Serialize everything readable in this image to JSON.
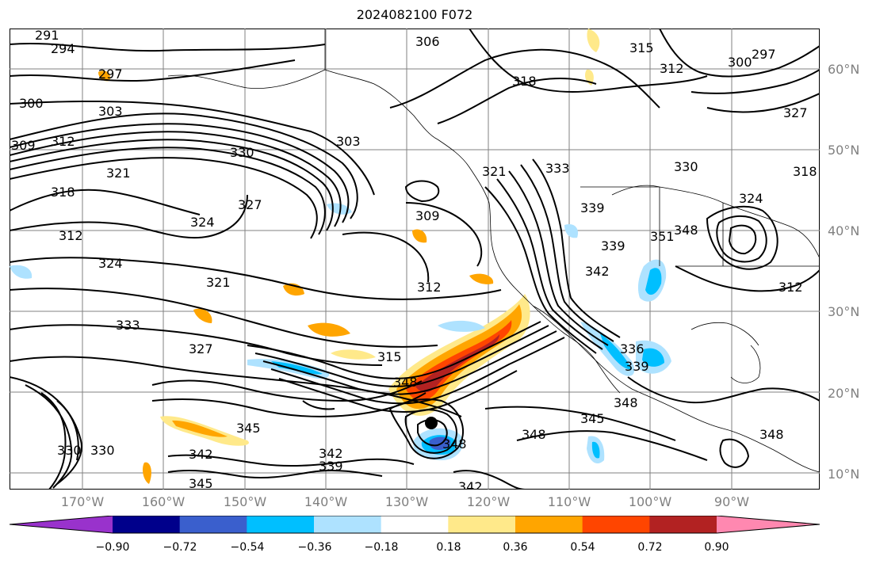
{
  "title": "2024082100 F072",
  "latitude_labels": [
    "60°N",
    "50°N",
    "40°N",
    "30°N",
    "20°N",
    "10°N"
  ],
  "longitude_labels": [
    "170°W",
    "160°W",
    "150°W",
    "140°W",
    "130°W",
    "120°W",
    "110°W",
    "100°W",
    "90°W"
  ],
  "colorbar": {
    "tick_labels": [
      "−0.90",
      "−0.72",
      "−0.54",
      "−0.36",
      "−0.18",
      "0.18",
      "0.36",
      "0.54",
      "0.72",
      "0.90"
    ],
    "colors": [
      "#9932cc",
      "#00008b",
      "#3a5fcd",
      "#00bfff",
      "#aee2ff",
      "#ffffff",
      "#ffe98a",
      "#ffa500",
      "#ff4500",
      "#b22222",
      "#ff88b0"
    ]
  },
  "contour_labels": [
    {
      "text": "291"
    },
    {
      "text": "294"
    },
    {
      "text": "297"
    },
    {
      "text": "300"
    },
    {
      "text": "303"
    },
    {
      "text": "309"
    },
    {
      "text": "312"
    },
    {
      "text": "330"
    },
    {
      "text": "321"
    },
    {
      "text": "318"
    },
    {
      "text": "312"
    },
    {
      "text": "324"
    },
    {
      "text": "327"
    },
    {
      "text": "324"
    },
    {
      "text": "321"
    },
    {
      "text": "333"
    },
    {
      "text": "327"
    },
    {
      "text": "303"
    },
    {
      "text": "306"
    },
    {
      "text": "318"
    },
    {
      "text": "315"
    },
    {
      "text": "312"
    },
    {
      "text": "309"
    },
    {
      "text": "312"
    },
    {
      "text": "315"
    },
    {
      "text": "330"
    },
    {
      "text": "345"
    },
    {
      "text": "342"
    },
    {
      "text": "345"
    },
    {
      "text": "342"
    },
    {
      "text": "339"
    },
    {
      "text": "348"
    },
    {
      "text": "348"
    },
    {
      "text": "345"
    },
    {
      "text": "342"
    },
    {
      "text": "321"
    },
    {
      "text": "333"
    },
    {
      "text": "339"
    },
    {
      "text": "330"
    },
    {
      "text": "351"
    },
    {
      "text": "348"
    },
    {
      "text": "342"
    },
    {
      "text": "339"
    },
    {
      "text": "336"
    },
    {
      "text": "339"
    },
    {
      "text": "348"
    },
    {
      "text": "327"
    },
    {
      "text": "318"
    },
    {
      "text": "324"
    },
    {
      "text": "312"
    },
    {
      "text": "300"
    },
    {
      "text": "297"
    },
    {
      "text": "348"
    },
    {
      "text": "348"
    },
    {
      "text": "330"
    }
  ],
  "storm_marker": "storm-center"
}
